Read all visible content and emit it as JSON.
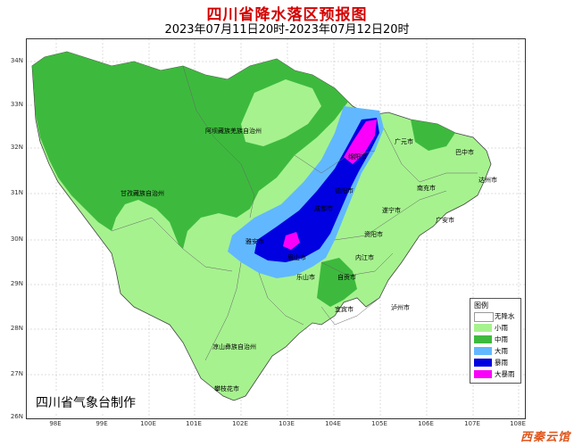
{
  "title": "四川省降水落区预报图",
  "subtitle": "2023年07月11日20时-2023年07月12日20时",
  "credit": "四川省气象台制作",
  "watermark": "西秦云馆",
  "longitudes": [
    "98E",
    "99E",
    "100E",
    "101E",
    "102E",
    "103E",
    "104E",
    "105E",
    "106E",
    "107E",
    "108E"
  ],
  "latitudes": [
    "34N",
    "33N",
    "32N",
    "31N",
    "30N",
    "29N",
    "28N",
    "27N",
    "26N"
  ],
  "legend": {
    "title": "图例",
    "items": [
      {
        "label": "无降水",
        "color": "#ffffff"
      },
      {
        "label": "小雨",
        "color": "#a6f28f"
      },
      {
        "label": "中雨",
        "color": "#3dba3d"
      },
      {
        "label": "大雨",
        "color": "#61b8ff"
      },
      {
        "label": "暴雨",
        "color": "#0000e1"
      },
      {
        "label": "大暴雨",
        "color": "#fa00fa"
      }
    ]
  },
  "places": [
    {
      "name": "阿坝藏族羌族自治州"
    },
    {
      "name": "甘孜藏族自治州"
    },
    {
      "name": "凉山彝族自治州"
    },
    {
      "name": "攀枝花市"
    },
    {
      "name": "绵阳市"
    },
    {
      "name": "广元市"
    },
    {
      "name": "巴中市"
    },
    {
      "name": "达州市"
    },
    {
      "name": "南充市"
    },
    {
      "name": "遂宁市"
    },
    {
      "name": "广安市"
    },
    {
      "name": "德阳市"
    },
    {
      "name": "成都市"
    },
    {
      "name": "资阳市"
    },
    {
      "name": "雅安市"
    },
    {
      "name": "眉山市"
    },
    {
      "name": "乐山市"
    },
    {
      "name": "内江市"
    },
    {
      "name": "自贡市"
    },
    {
      "name": "宜宾市"
    },
    {
      "name": "泸州市"
    }
  ]
}
